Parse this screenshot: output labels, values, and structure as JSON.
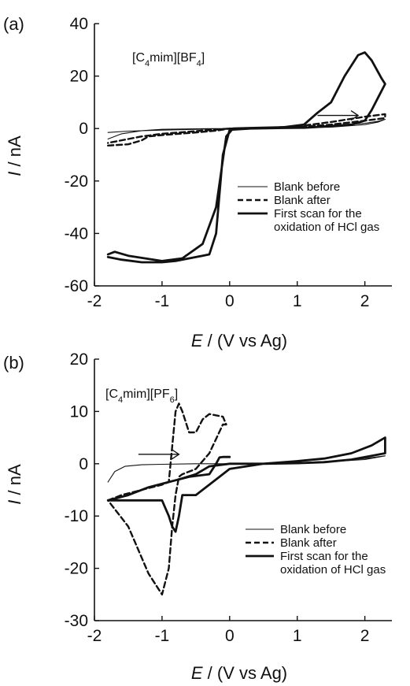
{
  "chart_data": [
    {
      "panel_label": "(a)",
      "type": "line",
      "compound": {
        "base": "[C",
        "s1": "4",
        "mid": "mim][BF",
        "s2": "4",
        "end": "]"
      },
      "xlabel": {
        "ital": "E",
        "rest": " / (V vs Ag)"
      },
      "ylabel": {
        "ital": "I",
        "rest": " / nA"
      },
      "xlim": [
        -2,
        2.4
      ],
      "ylim": [
        -60,
        40
      ],
      "xticks": [
        "-2",
        "-1",
        "0",
        "1",
        "2"
      ],
      "xtick_values": [
        -2,
        -1,
        0,
        1,
        2
      ],
      "yticks": [
        "-60",
        "-40",
        "-20",
        "0",
        "20",
        "40"
      ],
      "ytick_values": [
        -60,
        -40,
        -20,
        0,
        20,
        40
      ],
      "scan_direction": "positive",
      "legend": [
        {
          "key": "blank_before",
          "style": "thin",
          "lines": [
            "Blank before"
          ]
        },
        {
          "key": "blank_after",
          "style": "dashed",
          "lines": [
            "Blank after"
          ]
        },
        {
          "key": "first_scan",
          "style": "thick",
          "lines": [
            "First scan for the",
            "oxidation of HCl gas"
          ]
        }
      ],
      "series": [
        {
          "key": "blank_before",
          "style": "thin",
          "x": [
            -1.8,
            -1.6,
            -1.3,
            -1.0,
            -0.5,
            0.0,
            0.5,
            1.0,
            1.5,
            2.0,
            2.2,
            2.3,
            2.3,
            2.2,
            2.0,
            1.5,
            1.0,
            0.5,
            0.0,
            -0.5,
            -1.0,
            -1.5,
            -1.8
          ],
          "y": [
            -4,
            -2,
            -0.8,
            -0.3,
            -0.1,
            0.0,
            0.1,
            0.2,
            0.5,
            1.5,
            2.5,
            3.5,
            3.5,
            2.8,
            2.0,
            1.0,
            0.4,
            0.2,
            0.0,
            -0.3,
            -0.6,
            -1.0,
            -1.5
          ]
        },
        {
          "key": "blank_after",
          "style": "dashed",
          "x": [
            -1.8,
            -1.5,
            -1.3,
            -1.2,
            -1.0,
            -0.5,
            -0.2,
            0.0,
            0.5,
            1.0,
            1.5,
            2.0,
            2.3,
            2.3,
            2.0,
            1.5,
            1.0,
            0.5,
            0.0,
            -0.5,
            -1.0,
            -1.3,
            -1.5,
            -1.8
          ],
          "y": [
            -6.5,
            -6,
            -4.5,
            -3,
            -2.5,
            -1.5,
            -0.8,
            0.0,
            0.2,
            0.8,
            2.5,
            4.5,
            5.5,
            4.0,
            3.0,
            1.5,
            0.5,
            0.2,
            0.0,
            -1.0,
            -2.0,
            -3.0,
            -4.0,
            -5.5
          ]
        },
        {
          "key": "first_scan",
          "style": "thick",
          "x": [
            -1.8,
            -1.7,
            -1.5,
            -1.0,
            -0.7,
            -0.4,
            -0.2,
            -0.05,
            0.05,
            0.3,
            0.8,
            1.1,
            1.3,
            1.5,
            1.7,
            1.9,
            2.0,
            2.1,
            2.25,
            2.3,
            2.2,
            2.1,
            2.0,
            1.8,
            1.5,
            1.3,
            1.1,
            0.8,
            0.3,
            0.0,
            -0.1,
            -0.2,
            -0.3,
            -0.5,
            -0.8,
            -1.0,
            -1.3,
            -1.6,
            -1.8
          ],
          "y": [
            -48,
            -47,
            -48.5,
            -50.5,
            -49.5,
            -44,
            -30,
            -3,
            0,
            0.2,
            0.5,
            1.5,
            6,
            10,
            20,
            28,
            29,
            26,
            19,
            17,
            12,
            7,
            3,
            1.5,
            1,
            0.6,
            0.3,
            0.2,
            0.0,
            -0.5,
            -10,
            -40,
            -48,
            -49,
            -50.5,
            -51,
            -51,
            -50,
            -49
          ]
        }
      ]
    },
    {
      "panel_label": "(b)",
      "type": "line",
      "compound": {
        "base": "[C",
        "s1": "4",
        "mid": "mim][PF",
        "s2": "6",
        "end": "]"
      },
      "xlabel": {
        "ital": "E",
        "rest": " / (V vs Ag)"
      },
      "ylabel": {
        "ital": "I",
        "rest": " / nA"
      },
      "xlim": [
        -2,
        2.4
      ],
      "ylim": [
        -30,
        20
      ],
      "xticks": [
        "-2",
        "-1",
        "0",
        "1",
        "2"
      ],
      "xtick_values": [
        -2,
        -1,
        0,
        1,
        2
      ],
      "yticks": [
        "-30",
        "-20",
        "-10",
        "0",
        "10",
        "20"
      ],
      "ytick_values": [
        -30,
        -20,
        -10,
        0,
        10,
        20
      ],
      "scan_direction": "positive",
      "legend": [
        {
          "key": "blank_before",
          "style": "thin",
          "lines": [
            "Blank before"
          ]
        },
        {
          "key": "blank_after",
          "style": "dashed",
          "lines": [
            "Blank after"
          ]
        },
        {
          "key": "first_scan",
          "style": "thick",
          "lines": [
            "First scan for the",
            "oxidation of HCl gas"
          ]
        }
      ],
      "series": [
        {
          "key": "blank_before",
          "style": "thin",
          "x": [
            -1.8,
            -1.7,
            -1.55,
            -1.3,
            -1.0,
            -0.5,
            0.0,
            0.5,
            1.0,
            1.5,
            2.0,
            2.3,
            2.3,
            2.0,
            1.5,
            1.0,
            0.5,
            0.0,
            -0.2
          ],
          "y": [
            -3.5,
            -1.5,
            -0.5,
            -0.2,
            -0.1,
            0.0,
            0.0,
            0.1,
            0.2,
            0.4,
            0.8,
            1.5,
            1.5,
            1.0,
            0.5,
            0.2,
            0.1,
            0.0,
            0.0
          ]
        },
        {
          "key": "blank_after",
          "style": "dashed",
          "x": [
            -1.8,
            -1.6,
            -1.3,
            -1.0,
            -0.9,
            -0.8,
            -0.75,
            -0.7,
            -0.6,
            -0.5,
            -0.4,
            -0.3,
            -0.1,
            -0.05,
            -0.1,
            -0.3,
            -0.5,
            -0.7,
            -0.75,
            -0.8,
            -0.85,
            -0.9,
            -1.0,
            -1.2,
            -1.5,
            -1.8
          ],
          "y": [
            -7,
            -6,
            -5,
            -4,
            -3.5,
            10,
            11.5,
            10,
            6,
            6,
            8.5,
            9.5,
            9,
            7.5,
            7.5,
            2,
            -1,
            -2,
            -2.5,
            -6,
            -12,
            -20,
            -25,
            -21,
            -12,
            -7
          ]
        },
        {
          "key": "first_scan",
          "style": "thick",
          "x": [
            -1.8,
            -1.5,
            -1.2,
            -1.0,
            -0.9,
            -0.85,
            -0.8,
            -0.75,
            -0.7,
            -0.5,
            -0.3,
            0.0,
            0.5,
            1.0,
            1.4,
            1.8,
            2.1,
            2.3,
            2.3,
            2.1,
            1.8,
            1.4,
            1.0,
            0.5,
            0.0,
            -0.3,
            -0.5,
            -0.75,
            -0.9,
            -1.2,
            -1.5,
            -1.8
          ],
          "y": [
            -7,
            -7,
            -7,
            -7,
            -10,
            -12,
            -13,
            -10,
            -6,
            -6,
            -4,
            -1,
            0,
            0.5,
            1,
            2,
            3.5,
            5,
            2,
            1.5,
            0.8,
            0.3,
            0.1,
            0.0,
            0.0,
            -0.5,
            -2,
            -3,
            -3.5,
            -4.5,
            -6,
            -7
          ]
        },
        {
          "key": "first_scan_tail",
          "style": "thick",
          "x": [
            -0.75,
            -0.6,
            -0.3,
            -0.2,
            -0.15,
            -0.1,
            0.0
          ],
          "y": [
            -3,
            -2.5,
            -2,
            0,
            1.2,
            1.3,
            1.3
          ]
        }
      ]
    }
  ]
}
